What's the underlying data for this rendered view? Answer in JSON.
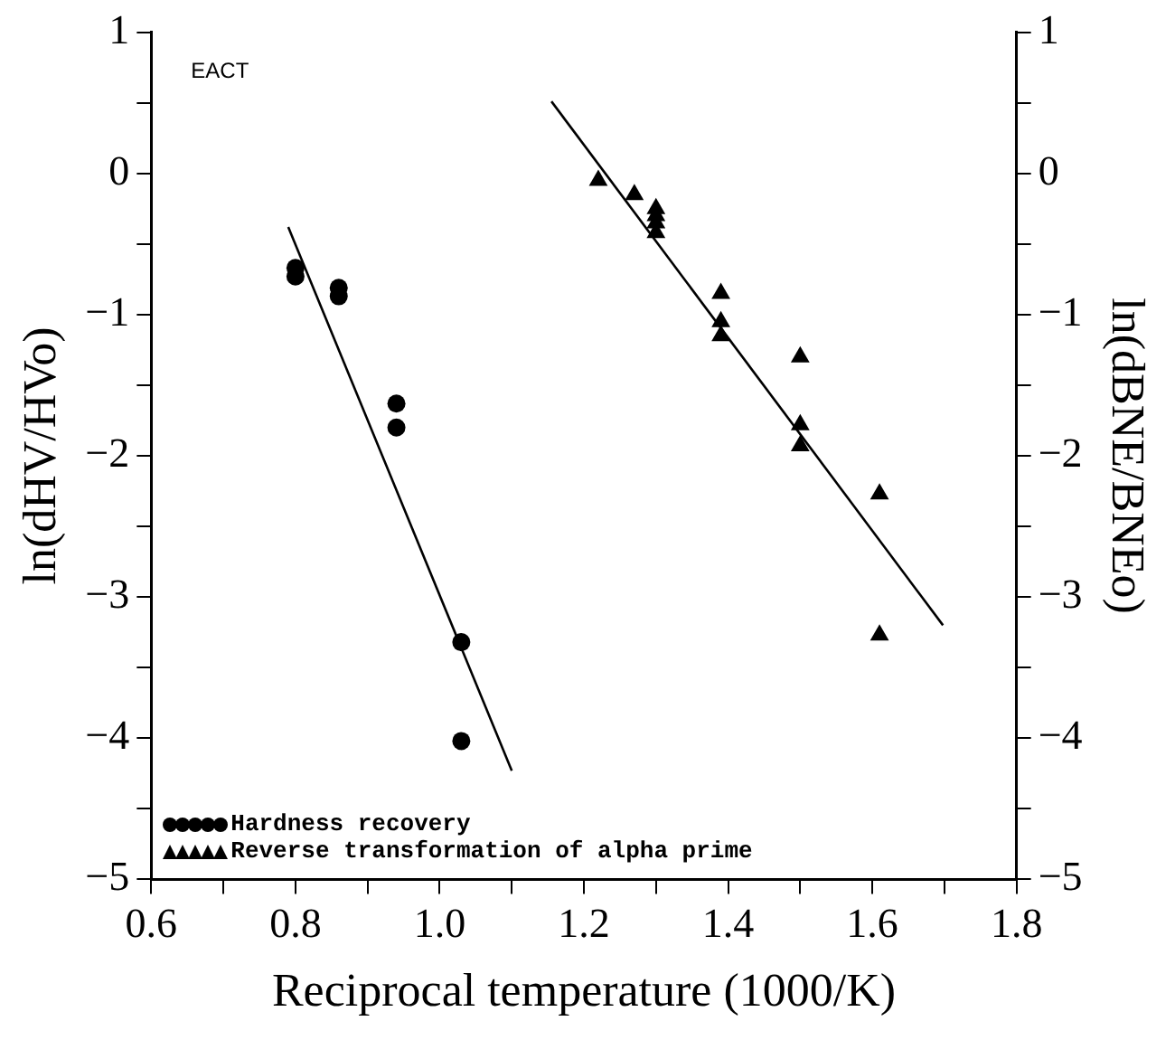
{
  "chart_data": {
    "type": "scatter",
    "xlabel": "Reciprocal temperature (1000/K)",
    "ylabel": "ln(dHV/HVo)",
    "y2label": "ln(dBNE/BNEo)",
    "annotations": [
      "EACT"
    ],
    "xlim": [
      0.6,
      1.8
    ],
    "xticks": [
      0.6,
      {
        "value": 0.7,
        "label": null
      },
      0.8,
      {
        "value": 0.9,
        "label": null
      },
      {
        "value": 1.0,
        "label": "1.0"
      },
      {
        "value": 1.1,
        "label": null
      },
      1.2,
      {
        "value": 1.3,
        "label": null
      },
      1.4,
      {
        "value": 1.5,
        "label": null
      },
      1.6,
      {
        "value": 1.7,
        "label": null
      },
      1.8
    ],
    "ylim": [
      -5,
      1
    ],
    "yticks": [
      {
        "value": -5,
        "label": "−5"
      },
      {
        "value": -4.5,
        "label": null
      },
      {
        "value": -4,
        "label": "−4"
      },
      {
        "value": -3.5,
        "label": null
      },
      {
        "value": -3,
        "label": "−3"
      },
      {
        "value": -2.5,
        "label": null
      },
      {
        "value": -2,
        "label": "−2"
      },
      {
        "value": -1.5,
        "label": null
      },
      {
        "value": -1,
        "label": "−1"
      },
      {
        "value": -0.5,
        "label": null
      },
      0,
      {
        "value": 0.5,
        "label": null
      },
      1
    ],
    "y2lim": [
      -5,
      1
    ],
    "y2ticks": [
      {
        "value": -5,
        "label": "−5"
      },
      {
        "value": -4.5,
        "label": null
      },
      {
        "value": -4,
        "label": "−4"
      },
      {
        "value": -3.5,
        "label": null
      },
      {
        "value": -3,
        "label": "−3"
      },
      {
        "value": -2.5,
        "label": null
      },
      {
        "value": -2,
        "label": "−2"
      },
      {
        "value": -1.5,
        "label": null
      },
      {
        "value": -1,
        "label": "−1"
      },
      {
        "value": -0.5,
        "label": null
      },
      0,
      {
        "value": 0.5,
        "label": null
      },
      1
    ],
    "grid": false,
    "legend": "bottom left",
    "series": [
      {
        "name": "Hardness recovery",
        "type": "scatter",
        "marker": "circle",
        "color": "#000000",
        "x": [
          0.8,
          0.8,
          0.86,
          0.86,
          0.94,
          0.94,
          1.03,
          1.03
        ],
        "values": [
          -0.67,
          -0.73,
          -0.81,
          -0.87,
          -1.63,
          -1.8,
          -3.32,
          -4.02
        ]
      },
      {
        "name": "Reverse transformation of alpha prime",
        "type": "scatter",
        "marker": "triangle",
        "axis": "y2",
        "color": "#000000",
        "x": [
          1.22,
          1.27,
          1.3,
          1.3,
          1.3,
          1.3,
          1.39,
          1.39,
          1.39,
          1.5,
          1.5,
          1.5,
          1.61,
          1.61
        ],
        "values": [
          -0.05,
          -0.15,
          -0.25,
          -0.3,
          -0.35,
          -0.42,
          -0.85,
          -1.05,
          -1.15,
          -1.3,
          -1.78,
          -1.93,
          -2.27,
          -3.27
        ]
      },
      {
        "type": "line",
        "marker": "none",
        "color": "#000000",
        "x": [
          0.79,
          1.1
        ],
        "values": [
          -0.38,
          -4.23
        ]
      },
      {
        "type": "line",
        "marker": "none",
        "axis": "y2",
        "color": "#000000",
        "x": [
          1.155,
          1.698
        ],
        "values": [
          0.51,
          -3.2
        ]
      }
    ]
  }
}
